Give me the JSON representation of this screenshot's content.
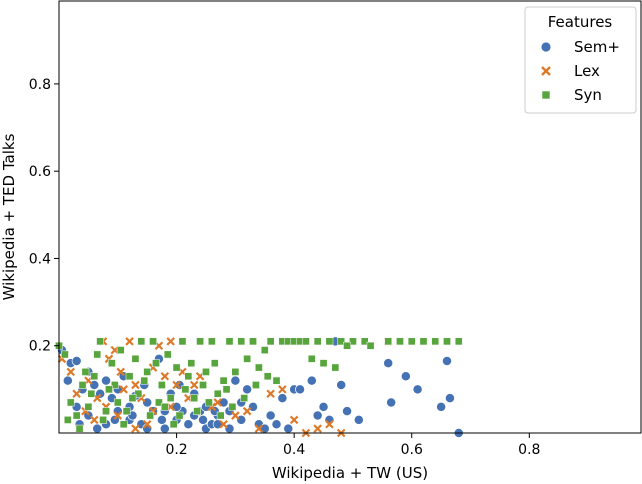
{
  "chart_data": {
    "type": "scatter",
    "title": "",
    "xlabel": "Wikipedia + TW (US)",
    "ylabel": "Wikipedia + TED Talks",
    "xlim": [
      0.0,
      0.99
    ],
    "ylim": [
      0.0,
      0.99
    ],
    "xticks": [
      0.2,
      0.4,
      0.6,
      0.8
    ],
    "yticks": [
      0.2,
      0.4,
      0.6,
      0.8
    ],
    "xtick_labels": [
      "0.2",
      "0.4",
      "0.6",
      "0.8"
    ],
    "ytick_labels": [
      "0.2",
      "0.4",
      "0.6",
      "0.8"
    ],
    "legend": {
      "title": "Features",
      "placement": "top-right"
    },
    "series": [
      {
        "name": "Sem+",
        "marker": "circle",
        "color": "#4472b4",
        "points": [
          [
            0.005,
            0.19
          ],
          [
            0.02,
            0.16
          ],
          [
            0.03,
            0.165
          ],
          [
            0.05,
            0.14
          ],
          [
            0.04,
            0.1
          ],
          [
            0.06,
            0.11
          ],
          [
            0.07,
            0.09
          ],
          [
            0.08,
            0.12
          ],
          [
            0.09,
            0.08
          ],
          [
            0.1,
            0.1
          ],
          [
            0.11,
            0.13
          ],
          [
            0.12,
            0.06
          ],
          [
            0.13,
            0.085
          ],
          [
            0.14,
            0.02
          ],
          [
            0.15,
            0.07
          ],
          [
            0.16,
            0.05
          ],
          [
            0.17,
            0.17
          ],
          [
            0.18,
            0.05
          ],
          [
            0.19,
            0.09
          ],
          [
            0.2,
            0.03
          ],
          [
            0.21,
            0.05
          ],
          [
            0.22,
            0.02
          ],
          [
            0.23,
            0.04
          ],
          [
            0.24,
            0.05
          ],
          [
            0.25,
            0.01
          ],
          [
            0.26,
            0.02
          ],
          [
            0.27,
            0.04
          ],
          [
            0.28,
            0.07
          ],
          [
            0.29,
            0.01
          ],
          [
            0.3,
            0.12
          ],
          [
            0.31,
            0.03
          ],
          [
            0.32,
            0.1
          ],
          [
            0.33,
            0.06
          ],
          [
            0.34,
            0.02
          ],
          [
            0.35,
            0.01
          ],
          [
            0.36,
            0.04
          ],
          [
            0.37,
            0.02
          ],
          [
            0.38,
            0.08
          ],
          [
            0.39,
            0.01
          ],
          [
            0.4,
            0.1
          ],
          [
            0.41,
            0.1
          ],
          [
            0.43,
            0.12
          ],
          [
            0.44,
            0.04
          ],
          [
            0.45,
            0.06
          ],
          [
            0.46,
            0.03
          ],
          [
            0.47,
            0.21
          ],
          [
            0.48,
            0.11
          ],
          [
            0.49,
            0.05
          ],
          [
            0.51,
            0.03
          ],
          [
            0.56,
            0.16
          ],
          [
            0.565,
            0.07
          ],
          [
            0.59,
            0.13
          ],
          [
            0.61,
            0.1
          ],
          [
            0.65,
            0.06
          ],
          [
            0.66,
            0.165
          ],
          [
            0.665,
            0.08
          ],
          [
            0.68,
            0.0
          ],
          [
            0.03,
            0.06
          ],
          [
            0.05,
            0.04
          ],
          [
            0.08,
            0.02
          ],
          [
            0.1,
            0.05
          ],
          [
            0.12,
            0.03
          ],
          [
            0.15,
            0.01
          ],
          [
            0.18,
            0.01
          ],
          [
            0.2,
            0.06
          ],
          [
            0.23,
            0.09
          ],
          [
            0.25,
            0.06
          ],
          [
            0.27,
            0.02
          ],
          [
            0.29,
            0.05
          ],
          [
            0.015,
            0.12
          ],
          [
            0.035,
            0.02
          ],
          [
            0.065,
            0.01
          ],
          [
            0.095,
            0.03
          ],
          [
            0.125,
            0.04
          ],
          [
            0.145,
            0.11
          ],
          [
            0.175,
            0.03
          ],
          [
            0.205,
            0.11
          ],
          [
            0.245,
            0.03
          ],
          [
            0.265,
            0.05
          ],
          [
            0.31,
            0.07
          ]
        ]
      },
      {
        "name": "Lex",
        "marker": "x",
        "color": "#dd7a2a",
        "points": [
          [
            0.005,
            0.17
          ],
          [
            0.02,
            0.14
          ],
          [
            0.03,
            0.09
          ],
          [
            0.045,
            0.05
          ],
          [
            0.06,
            0.03
          ],
          [
            0.075,
            0.21
          ],
          [
            0.085,
            0.17
          ],
          [
            0.095,
            0.19
          ],
          [
            0.11,
            0.1
          ],
          [
            0.12,
            0.21
          ],
          [
            0.13,
            0.11
          ],
          [
            0.14,
            0.08
          ],
          [
            0.15,
            0.02
          ],
          [
            0.16,
            0.15
          ],
          [
            0.17,
            0.2
          ],
          [
            0.18,
            0.13
          ],
          [
            0.19,
            0.21
          ],
          [
            0.2,
            0.11
          ],
          [
            0.21,
            0.14
          ],
          [
            0.22,
            0.08
          ],
          [
            0.24,
            0.13
          ],
          [
            0.26,
            0.06
          ],
          [
            0.28,
            0.02
          ],
          [
            0.3,
            0.04
          ],
          [
            0.32,
            0.05
          ],
          [
            0.34,
            0.01
          ],
          [
            0.36,
            0.09
          ],
          [
            0.38,
            0.1
          ],
          [
            0.4,
            0.03
          ],
          [
            0.42,
            0.0
          ],
          [
            0.44,
            0.01
          ],
          [
            0.46,
            0.02
          ],
          [
            0.48,
            0.0
          ],
          [
            0.56,
            0.21
          ],
          [
            0.05,
            0.12
          ],
          [
            0.08,
            0.06
          ],
          [
            0.1,
            0.04
          ],
          [
            0.13,
            0.01
          ],
          [
            0.16,
            0.05
          ],
          [
            0.19,
            0.06
          ],
          [
            0.23,
            0.11
          ],
          [
            0.27,
            0.07
          ],
          [
            0.035,
            0.01
          ],
          [
            0.065,
            0.08
          ],
          [
            0.105,
            0.14
          ]
        ]
      },
      {
        "name": "Syn",
        "marker": "square",
        "color": "#58a53e",
        "points": [
          [
            0.0,
            0.2
          ],
          [
            0.01,
            0.18
          ],
          [
            0.02,
            0.07
          ],
          [
            0.03,
            0.04
          ],
          [
            0.04,
            0.11
          ],
          [
            0.05,
            0.06
          ],
          [
            0.06,
            0.13
          ],
          [
            0.07,
            0.21
          ],
          [
            0.08,
            0.05
          ],
          [
            0.09,
            0.16
          ],
          [
            0.1,
            0.07
          ],
          [
            0.11,
            0.02
          ],
          [
            0.12,
            0.13
          ],
          [
            0.13,
            0.17
          ],
          [
            0.14,
            0.21
          ],
          [
            0.15,
            0.14
          ],
          [
            0.16,
            0.21
          ],
          [
            0.17,
            0.07
          ],
          [
            0.18,
            0.06
          ],
          [
            0.19,
            0.08
          ],
          [
            0.2,
            0.15
          ],
          [
            0.21,
            0.21
          ],
          [
            0.22,
            0.13
          ],
          [
            0.23,
            0.08
          ],
          [
            0.24,
            0.21
          ],
          [
            0.25,
            0.14
          ],
          [
            0.26,
            0.21
          ],
          [
            0.27,
            0.09
          ],
          [
            0.28,
            0.12
          ],
          [
            0.29,
            0.21
          ],
          [
            0.3,
            0.14
          ],
          [
            0.31,
            0.21
          ],
          [
            0.32,
            0.17
          ],
          [
            0.33,
            0.21
          ],
          [
            0.34,
            0.15
          ],
          [
            0.35,
            0.19
          ],
          [
            0.36,
            0.21
          ],
          [
            0.37,
            0.12
          ],
          [
            0.38,
            0.21
          ],
          [
            0.39,
            0.21
          ],
          [
            0.4,
            0.21
          ],
          [
            0.41,
            0.21
          ],
          [
            0.42,
            0.21
          ],
          [
            0.43,
            0.17
          ],
          [
            0.44,
            0.21
          ],
          [
            0.46,
            0.21
          ],
          [
            0.48,
            0.21
          ],
          [
            0.5,
            0.21
          ],
          [
            0.52,
            0.21
          ],
          [
            0.56,
            0.21
          ],
          [
            0.58,
            0.21
          ],
          [
            0.6,
            0.21
          ],
          [
            0.62,
            0.21
          ],
          [
            0.64,
            0.21
          ],
          [
            0.66,
            0.21
          ],
          [
            0.68,
            0.21
          ],
          [
            0.035,
            0.01
          ],
          [
            0.055,
            0.09
          ],
          [
            0.075,
            0.03
          ],
          [
            0.095,
            0.11
          ],
          [
            0.115,
            0.05
          ],
          [
            0.135,
            0.09
          ],
          [
            0.155,
            0.04
          ],
          [
            0.175,
            0.11
          ],
          [
            0.195,
            0.02
          ],
          [
            0.215,
            0.1
          ],
          [
            0.235,
            0.05
          ],
          [
            0.255,
            0.07
          ],
          [
            0.275,
            0.04
          ],
          [
            0.295,
            0.06
          ],
          [
            0.315,
            0.08
          ],
          [
            0.335,
            0.11
          ],
          [
            0.355,
            0.13
          ],
          [
            0.015,
            0.03
          ],
          [
            0.045,
            0.14
          ],
          [
            0.065,
            0.18
          ],
          [
            0.085,
            0.1
          ],
          [
            0.105,
            0.19
          ],
          [
            0.125,
            0.08
          ],
          [
            0.145,
            0.12
          ],
          [
            0.165,
            0.16
          ],
          [
            0.185,
            0.18
          ],
          [
            0.205,
            0.04
          ],
          [
            0.225,
            0.16
          ],
          [
            0.245,
            0.11
          ],
          [
            0.265,
            0.16
          ],
          [
            0.285,
            0.1
          ],
          [
            0.45,
            0.16
          ],
          [
            0.47,
            0.15
          ],
          [
            0.49,
            0.2
          ],
          [
            0.53,
            0.2
          ]
        ]
      }
    ]
  }
}
